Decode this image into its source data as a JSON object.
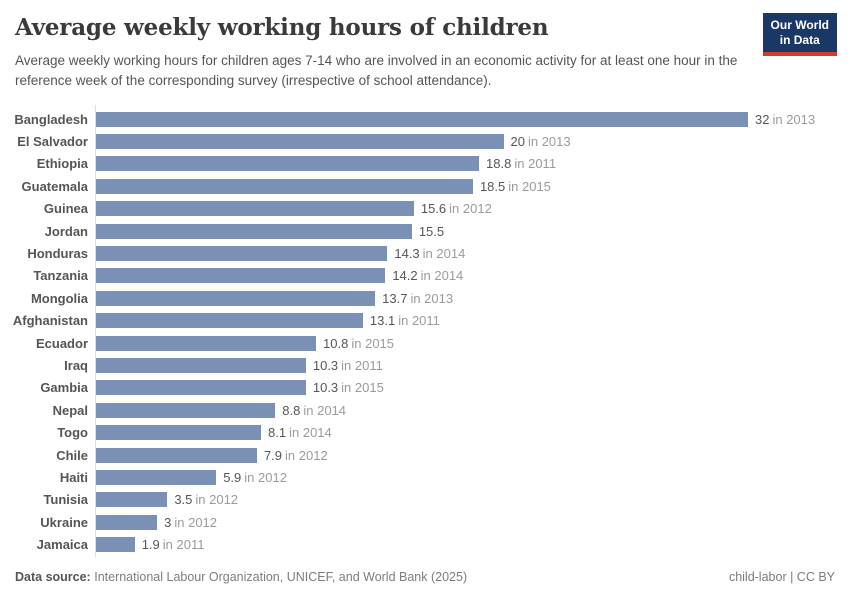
{
  "header": {
    "title": "Average weekly working hours of children",
    "subtitle": "Average weekly working hours for children ages 7-14 who are involved in an economic activity for at least one hour in the reference week of the corresponding survey (irrespective of school attendance).",
    "logo_line1": "Our World",
    "logo_line2": "in Data"
  },
  "chart_data": {
    "type": "bar",
    "orientation": "horizontal",
    "title": "Average weekly working hours of children",
    "xlabel": "",
    "ylabel": "",
    "xlim": [
      0,
      32
    ],
    "grid": false,
    "legend": false,
    "bar_color": "#7a90b5",
    "axis_color": "#dddddd",
    "categories": [
      "Bangladesh",
      "El Salvador",
      "Ethiopia",
      "Guatemala",
      "Guinea",
      "Jordan",
      "Honduras",
      "Tanzania",
      "Mongolia",
      "Afghanistan",
      "Ecuador",
      "Iraq",
      "Gambia",
      "Nepal",
      "Togo",
      "Chile",
      "Haiti",
      "Tunisia",
      "Ukraine",
      "Jamaica"
    ],
    "values": [
      32,
      20,
      18.8,
      18.5,
      15.6,
      15.5,
      14.3,
      14.2,
      13.7,
      13.1,
      10.8,
      10.3,
      10.3,
      8.8,
      8.1,
      7.9,
      5.9,
      3.5,
      3,
      1.9
    ],
    "rows": [
      {
        "entity": "Bangladesh",
        "value": 32,
        "value_label": "32",
        "year_label": "in 2013"
      },
      {
        "entity": "El Salvador",
        "value": 20,
        "value_label": "20",
        "year_label": "in 2013"
      },
      {
        "entity": "Ethiopia",
        "value": 18.8,
        "value_label": "18.8",
        "year_label": "in 2011"
      },
      {
        "entity": "Guatemala",
        "value": 18.5,
        "value_label": "18.5",
        "year_label": "in 2015"
      },
      {
        "entity": "Guinea",
        "value": 15.6,
        "value_label": "15.6",
        "year_label": "in 2012"
      },
      {
        "entity": "Jordan",
        "value": 15.5,
        "value_label": "15.5",
        "year_label": ""
      },
      {
        "entity": "Honduras",
        "value": 14.3,
        "value_label": "14.3",
        "year_label": "in 2014"
      },
      {
        "entity": "Tanzania",
        "value": 14.2,
        "value_label": "14.2",
        "year_label": "in 2014"
      },
      {
        "entity": "Mongolia",
        "value": 13.7,
        "value_label": "13.7",
        "year_label": "in 2013"
      },
      {
        "entity": "Afghanistan",
        "value": 13.1,
        "value_label": "13.1",
        "year_label": "in 2011"
      },
      {
        "entity": "Ecuador",
        "value": 10.8,
        "value_label": "10.8",
        "year_label": "in 2015"
      },
      {
        "entity": "Iraq",
        "value": 10.3,
        "value_label": "10.3",
        "year_label": "in 2011"
      },
      {
        "entity": "Gambia",
        "value": 10.3,
        "value_label": "10.3",
        "year_label": "in 2015"
      },
      {
        "entity": "Nepal",
        "value": 8.8,
        "value_label": "8.8",
        "year_label": "in 2014"
      },
      {
        "entity": "Togo",
        "value": 8.1,
        "value_label": "8.1",
        "year_label": "in 2014"
      },
      {
        "entity": "Chile",
        "value": 7.9,
        "value_label": "7.9",
        "year_label": "in 2012"
      },
      {
        "entity": "Haiti",
        "value": 5.9,
        "value_label": "5.9",
        "year_label": "in 2012"
      },
      {
        "entity": "Tunisia",
        "value": 3.5,
        "value_label": "3.5",
        "year_label": "in 2012"
      },
      {
        "entity": "Ukraine",
        "value": 3,
        "value_label": "3",
        "year_label": "in 2012"
      },
      {
        "entity": "Jamaica",
        "value": 1.9,
        "value_label": "1.9",
        "year_label": "in 2011"
      }
    ]
  },
  "footer": {
    "sources_label": "Data source:",
    "sources_text": "International Labour Organization, UNICEF, and World Bank (2025)",
    "license_text": "child-labor | CC BY"
  }
}
